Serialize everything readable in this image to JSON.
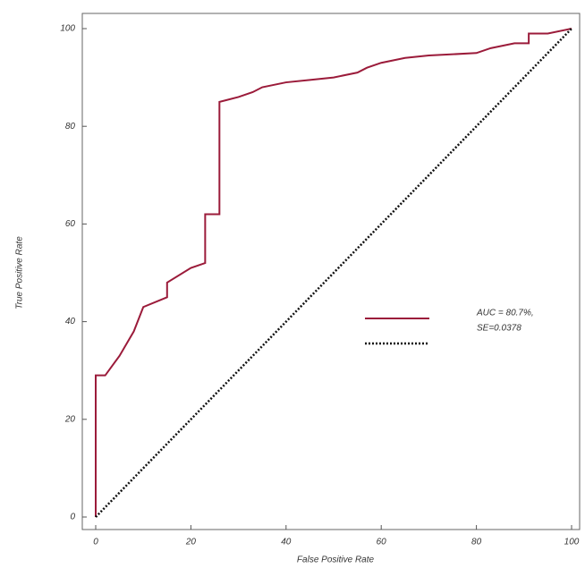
{
  "chart_data": {
    "type": "line",
    "xlabel": "False Positive Rate",
    "ylabel": "True Positive Rate",
    "xlim": [
      0,
      100
    ],
    "ylim": [
      0,
      100
    ],
    "xticks": [
      0,
      20,
      40,
      60,
      80,
      100
    ],
    "yticks": [
      0,
      20,
      40,
      60,
      80,
      100
    ],
    "annotations": [
      "AUC = 80.7%,",
      "SE=0.0378"
    ],
    "series": [
      {
        "color": "#9b1b3a",
        "dash": "solid",
        "x": [
          0,
          0,
          2,
          5,
          8,
          10,
          15,
          15,
          20,
          23,
          23,
          26,
          26,
          30,
          33,
          35,
          40,
          45,
          50,
          55,
          57,
          60,
          65,
          70,
          80,
          83,
          88,
          91,
          91,
          95,
          100
        ],
        "values": [
          0,
          29,
          29,
          33,
          38,
          43,
          45,
          48,
          51,
          52,
          62,
          62,
          85,
          86,
          87,
          88,
          89,
          89.5,
          90,
          91,
          92,
          93,
          94,
          94.5,
          95,
          96,
          97,
          97,
          99,
          99,
          100
        ]
      },
      {
        "color": "#111111",
        "dash": "dotted",
        "x": [
          0,
          100
        ],
        "values": [
          0,
          100
        ]
      }
    ]
  }
}
